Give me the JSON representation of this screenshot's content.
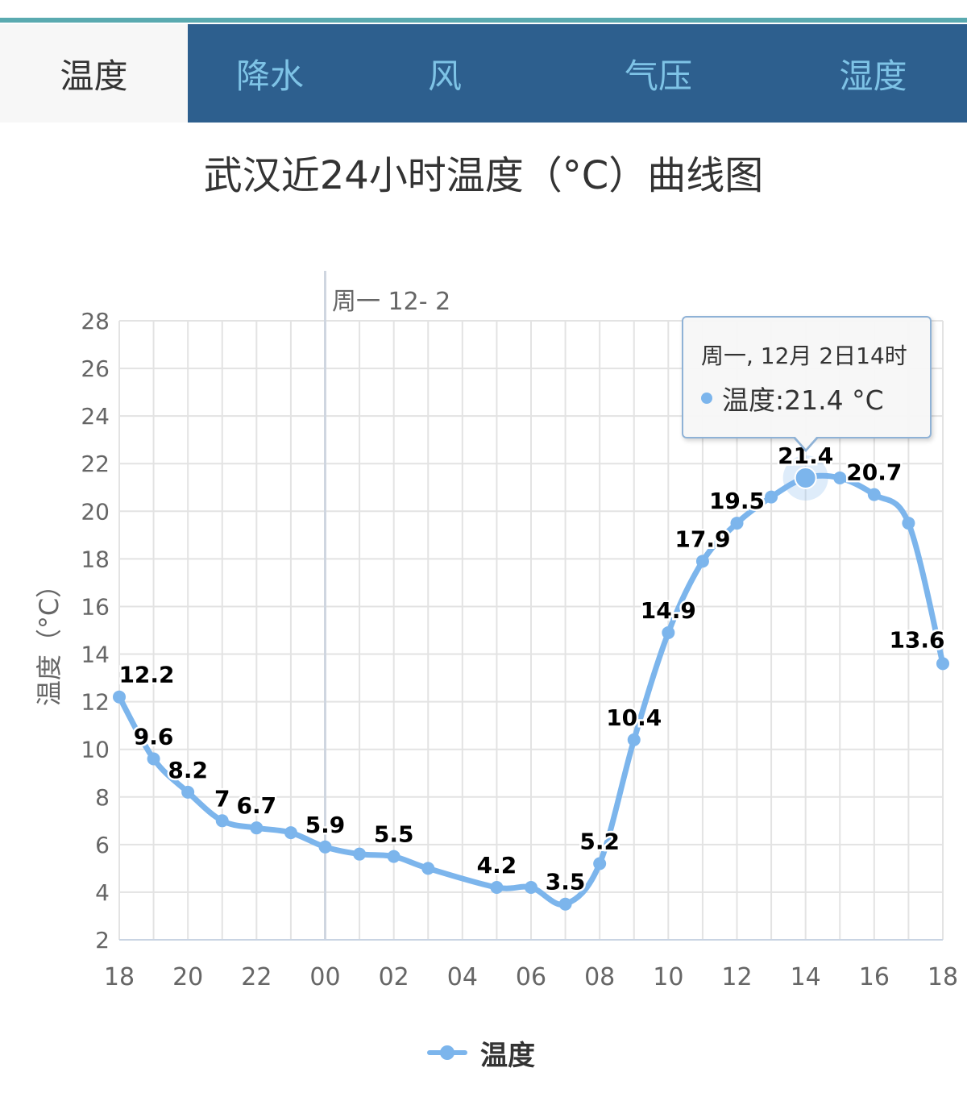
{
  "tabs": [
    {
      "label": "温度",
      "active": true
    },
    {
      "label": "降水",
      "active": false
    },
    {
      "label": "风",
      "active": false
    },
    {
      "label": "气压",
      "active": false
    },
    {
      "label": "湿度",
      "active": false
    }
  ],
  "colors": {
    "tabbar_bg": "#2d5f8e",
    "tab_text": "#7ec3e6",
    "active_tab_bg": "#f7f7f7",
    "series": "#7cb5ec",
    "grid": "#e3e3e3",
    "axis_text": "#666666"
  },
  "chart_data": {
    "type": "line",
    "title": "武汉近24小时温度（°C）曲线图",
    "ylabel": "温度（°C）",
    "xlabel": "",
    "ylim": [
      2,
      28
    ],
    "yticks": [
      2,
      4,
      6,
      8,
      10,
      12,
      14,
      16,
      18,
      20,
      22,
      24,
      26,
      28
    ],
    "x_tick_labels": [
      "18",
      "20",
      "22",
      "00",
      "02",
      "04",
      "06",
      "08",
      "10",
      "12",
      "14",
      "16",
      "18"
    ],
    "date_marker": "周一 12- 2",
    "grid": true,
    "legend_position": "bottom-center",
    "series": [
      {
        "name": "温度",
        "x": [
          "18",
          "19",
          "20",
          "21",
          "22",
          "23",
          "00",
          "01",
          "02",
          "03",
          "05",
          "06",
          "07",
          "08",
          "09",
          "10",
          "11",
          "12",
          "13",
          "14",
          "15",
          "16",
          "17",
          "18"
        ],
        "values": [
          12.2,
          9.6,
          8.2,
          7,
          6.7,
          6.5,
          5.9,
          5.6,
          5.5,
          5.0,
          4.2,
          4.2,
          3.5,
          5.2,
          10.4,
          14.9,
          17.9,
          19.5,
          20.6,
          21.4,
          21.4,
          20.7,
          19.5,
          13.6
        ],
        "data_labels": [
          "12.2",
          "9.6",
          "8.2",
          "7",
          "6.7",
          "",
          "5.9",
          "",
          "5.5",
          "",
          "4.2",
          "",
          "3.5",
          "5.2",
          "10.4",
          "14.9",
          "17.9",
          "19.5",
          "",
          "21.4",
          "",
          "20.7",
          "",
          "13.6"
        ]
      }
    ]
  },
  "tooltip": {
    "date": "周一, 12月 2日14时",
    "value_text": "温度:21.4 °C"
  }
}
